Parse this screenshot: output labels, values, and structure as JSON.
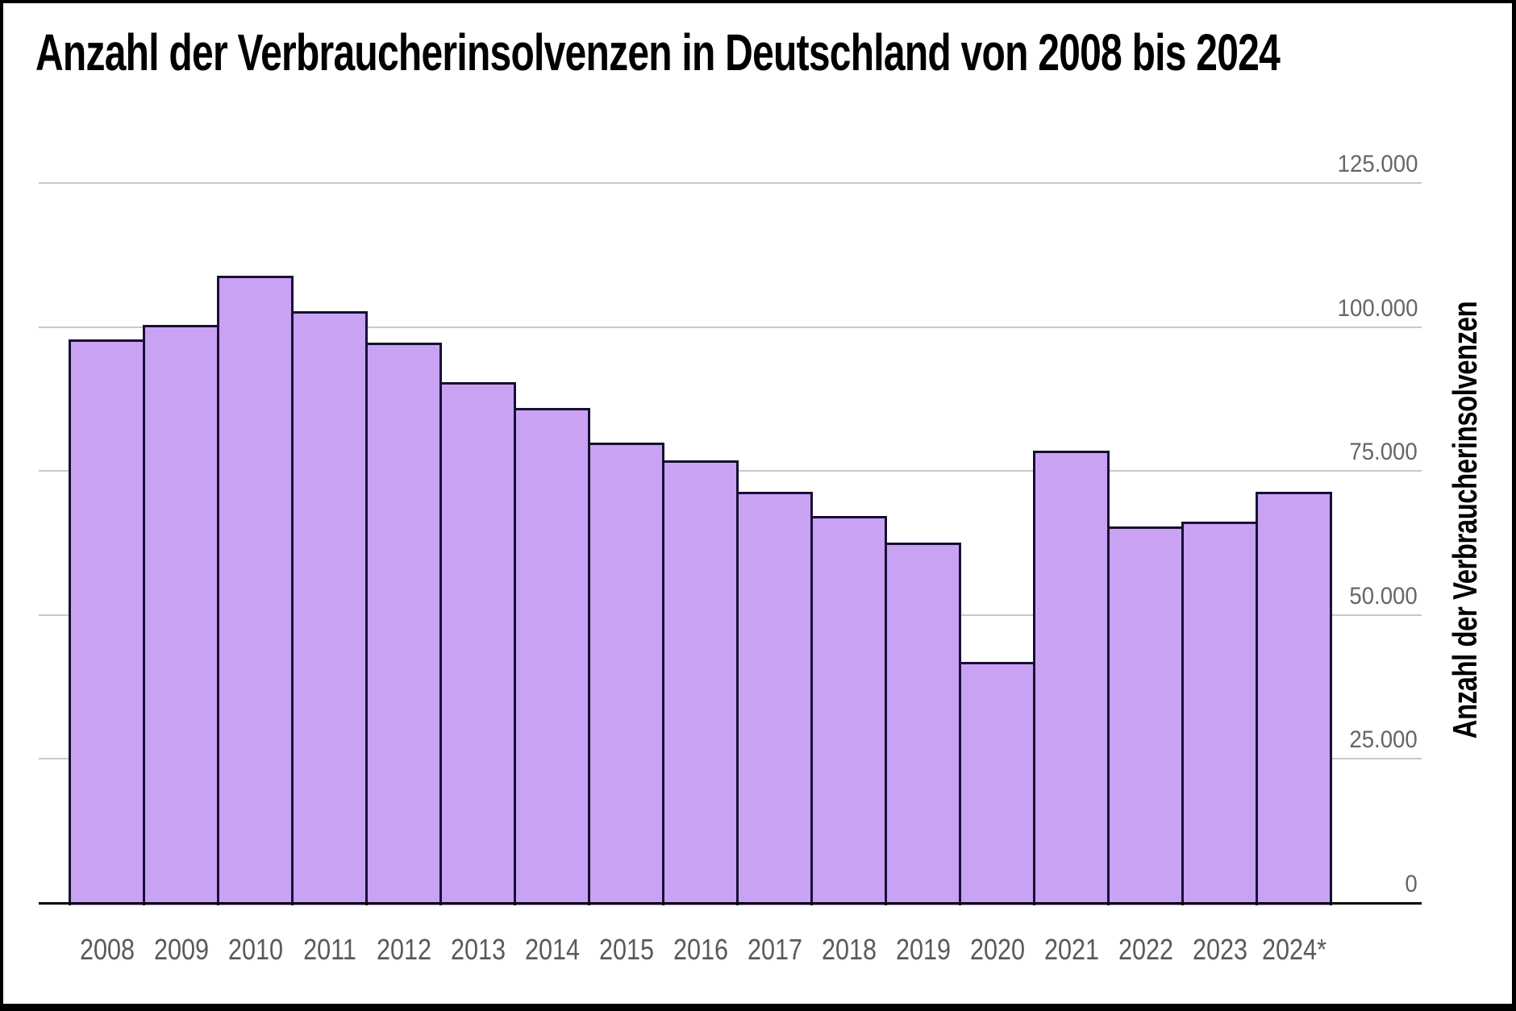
{
  "chart_data": {
    "type": "bar",
    "title": "Anzahl der Verbraucherinsolvenzen in Deutschland von 2008 bis 2024",
    "xlabel": "",
    "ylabel": "Anzahl der Verbraucherinsolvenzen",
    "categories": [
      "2008",
      "2009",
      "2010",
      "2011",
      "2012",
      "2013",
      "2014",
      "2015",
      "2016",
      "2017",
      "2018",
      "2019",
      "2020",
      "2021",
      "2022",
      "2023",
      "2024*"
    ],
    "values": [
      97900,
      100300,
      108900,
      102700,
      97300,
      90400,
      86000,
      79900,
      76900,
      71400,
      67200,
      62600,
      41900,
      78500,
      65400,
      66200,
      71400
    ],
    "ylim": [
      0,
      125000
    ],
    "yticks": [
      {
        "value": 0,
        "label": "0"
      },
      {
        "value": 25000,
        "label": "25.000"
      },
      {
        "value": 50000,
        "label": "50.000"
      },
      {
        "value": 75000,
        "label": "75.000"
      },
      {
        "value": 100000,
        "label": "100.000"
      },
      {
        "value": 125000,
        "label": "125.000"
      }
    ],
    "grid": "horizontal",
    "legend": "none",
    "tick_label_position": "right",
    "colors": {
      "bar_fill": "#c9a2f3",
      "bar_border": "#180f33",
      "gridline": "#c8c8c8",
      "axis_line": "#000000",
      "y_tick_label": "#666666",
      "x_tick_label": "#5a5a5a",
      "title": "#000000",
      "y_axis_title": "#000000",
      "background": "#ffffff",
      "frame": "#000000"
    }
  }
}
